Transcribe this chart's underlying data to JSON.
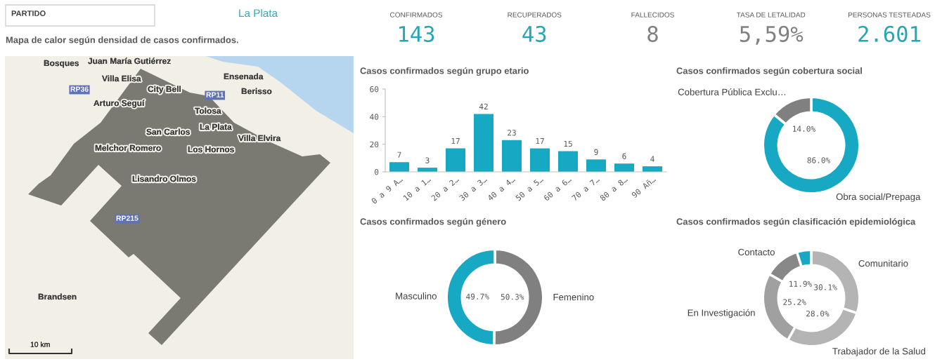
{
  "chart_data": [
    {
      "type": "other",
      "title": "Mapa de calor según densidad de casos confirmados.",
      "annotations": [
        "PARTIDO",
        "La Plata",
        "Bosques",
        "Juan María Gutiérrez",
        "Villa Elisa",
        "RP36",
        "City Bell",
        "RP11",
        "Ensenada",
        "Berisso",
        "Arturo Seguí",
        "Tolosa",
        "La Plata",
        "San Carlos",
        "Villa Elvira",
        "Melchor Romero",
        "Los Hornos",
        "Lisandro Olmos",
        "RP215",
        "Brandsen",
        "10 km"
      ],
      "colors": [
        "#404040",
        "#3aa8b5"
      ]
    },
    {
      "type": "other",
      "annotations": [
        "CONFIRMADOS",
        "143",
        "RECUPERADOS",
        "43",
        "FALLECIDOS",
        "8",
        "TASA DE LETALIDAD",
        "5,59%",
        "PERSONAS TESTEADAS",
        "2.601"
      ],
      "colors": [
        "#26a6b5",
        "#26a6b5",
        "#808080",
        "#808080",
        "#26a6b5"
      ]
    },
    {
      "type": "bar",
      "title": "Casos confirmados según grupo etario",
      "categories": [
        "0 a 9 A…",
        "10 a 1…",
        "20 a 2…",
        "30 a 3…",
        "40 a 4…",
        "50 a 5…",
        "60 a 6…",
        "70 a 7…",
        "80 a 8…",
        "90 Añ…"
      ],
      "values": [
        7,
        3,
        17,
        42,
        23,
        17,
        15,
        9,
        6,
        4
      ],
      "color": "#17a9c4",
      "ylim": [
        0,
        60
      ],
      "yticks": [
        0,
        20,
        40,
        60
      ],
      "data_labels": true
    },
    {
      "type": "donut",
      "title": "Casos confirmados según cobertura social",
      "categories": [
        "Obra social/Prepaga",
        "Cobertura Pública Exclu…"
      ],
      "values": [
        86.0,
        14.0
      ],
      "colors": [
        "#17a9c4",
        "#808080"
      ],
      "value_labels": [
        "86.0%",
        "14.0%"
      ]
    },
    {
      "type": "donut",
      "title": "Casos confirmados según género",
      "categories": [
        "Femenino",
        "Masculino"
      ],
      "values": [
        50.3,
        49.7
      ],
      "colors": [
        "#808080",
        "#17a9c4"
      ],
      "value_labels": [
        "50.3%",
        "49.7%"
      ]
    },
    {
      "type": "donut",
      "title": "Casos confirmados según clasificación epidemiológica",
      "categories": [
        "Comunitario",
        "Trabajador de la Salud",
        "En Investigación",
        "Contacto",
        null
      ],
      "values": [
        30.1,
        28.0,
        25.2,
        11.9,
        4.8
      ],
      "colors": [
        "#b4b4b4",
        "#b4b4b4",
        "#a0a0a0",
        "#888888",
        "#17a9c4"
      ],
      "value_labels": [
        "30.1%",
        "28.0%",
        "25.2%",
        "11.9%",
        null
      ]
    }
  ]
}
